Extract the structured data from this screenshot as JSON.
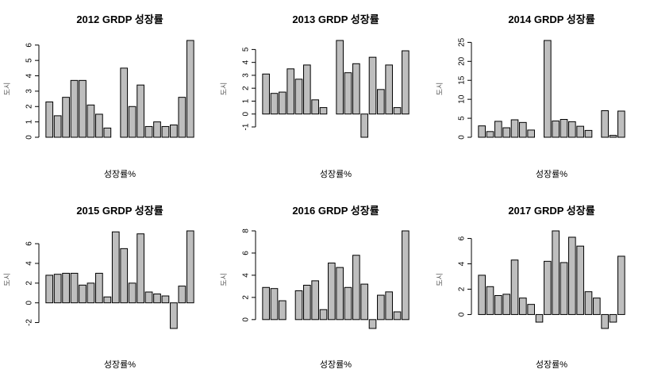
{
  "chart_data": [
    {
      "type": "bar",
      "title": "2012 GRDP 성장률",
      "xlabel": "성장률%",
      "ylabel": "도시",
      "ylim": [
        0,
        6.3
      ],
      "yticks": [
        0,
        1,
        2,
        3,
        4,
        5,
        6
      ],
      "values": [
        2.3,
        1.4,
        2.6,
        3.7,
        3.7,
        2.1,
        1.5,
        0.6,
        0.0,
        4.5,
        2.0,
        3.4,
        0.7,
        1.0,
        0.7,
        0.8,
        2.6,
        6.3
      ]
    },
    {
      "type": "bar",
      "title": "2013 GRDP 성장률",
      "xlabel": "성장률%",
      "ylabel": "도시",
      "ylim": [
        -1.8,
        5.7
      ],
      "yticks": [
        -1,
        0,
        1,
        2,
        3,
        4,
        5
      ],
      "values": [
        3.1,
        1.6,
        1.7,
        3.5,
        2.7,
        3.8,
        1.1,
        0.5,
        0.0,
        5.7,
        3.2,
        3.9,
        -1.8,
        4.4,
        1.9,
        3.8,
        0.5,
        4.9
      ]
    },
    {
      "type": "bar",
      "title": "2014 GRDP 성장률",
      "xlabel": "성장률%",
      "ylabel": "도시",
      "ylim": [
        0,
        25.5
      ],
      "yticks": [
        0,
        5,
        10,
        15,
        20,
        25
      ],
      "values": [
        3.0,
        1.5,
        4.2,
        2.5,
        4.6,
        3.9,
        1.9,
        0.0,
        25.5,
        4.3,
        4.7,
        4.1,
        2.9,
        1.8,
        0.0,
        7.0,
        0.5,
        6.9
      ]
    },
    {
      "type": "bar",
      "title": "2015 GRDP 성장률",
      "xlabel": "성장률%",
      "ylabel": "도시",
      "ylim": [
        -2.6,
        7.3
      ],
      "yticks": [
        -2,
        0,
        2,
        4,
        6
      ],
      "values": [
        2.8,
        2.9,
        3.0,
        3.0,
        1.8,
        2.0,
        3.0,
        0.6,
        7.2,
        5.5,
        2.0,
        7.0,
        1.1,
        0.9,
        0.7,
        -2.6,
        1.7,
        7.3
      ]
    },
    {
      "type": "bar",
      "title": "2016 GRDP 성장률",
      "xlabel": "성장률%",
      "ylabel": "도시",
      "ylim": [
        -0.8,
        8.0
      ],
      "yticks": [
        0,
        2,
        4,
        6,
        8
      ],
      "values": [
        2.9,
        2.8,
        1.7,
        0.0,
        2.6,
        3.1,
        3.5,
        0.9,
        5.1,
        4.7,
        2.9,
        5.8,
        3.2,
        -0.8,
        2.2,
        2.5,
        0.7,
        8.0
      ]
    },
    {
      "type": "bar",
      "title": "2017 GRDP 성장률",
      "xlabel": "성장률%",
      "ylabel": "도시",
      "ylim": [
        -1.1,
        6.6
      ],
      "yticks": [
        0,
        2,
        4,
        6
      ],
      "values": [
        3.1,
        2.2,
        1.5,
        1.6,
        4.3,
        1.3,
        0.8,
        -0.6,
        4.2,
        6.6,
        4.1,
        6.1,
        5.4,
        1.8,
        1.3,
        -1.1,
        -0.6,
        4.6
      ]
    }
  ],
  "colors": {
    "bar_fill": "#bebebe",
    "bar_stroke": "#000000",
    "axis": "#000000",
    "background": "#ffffff"
  }
}
